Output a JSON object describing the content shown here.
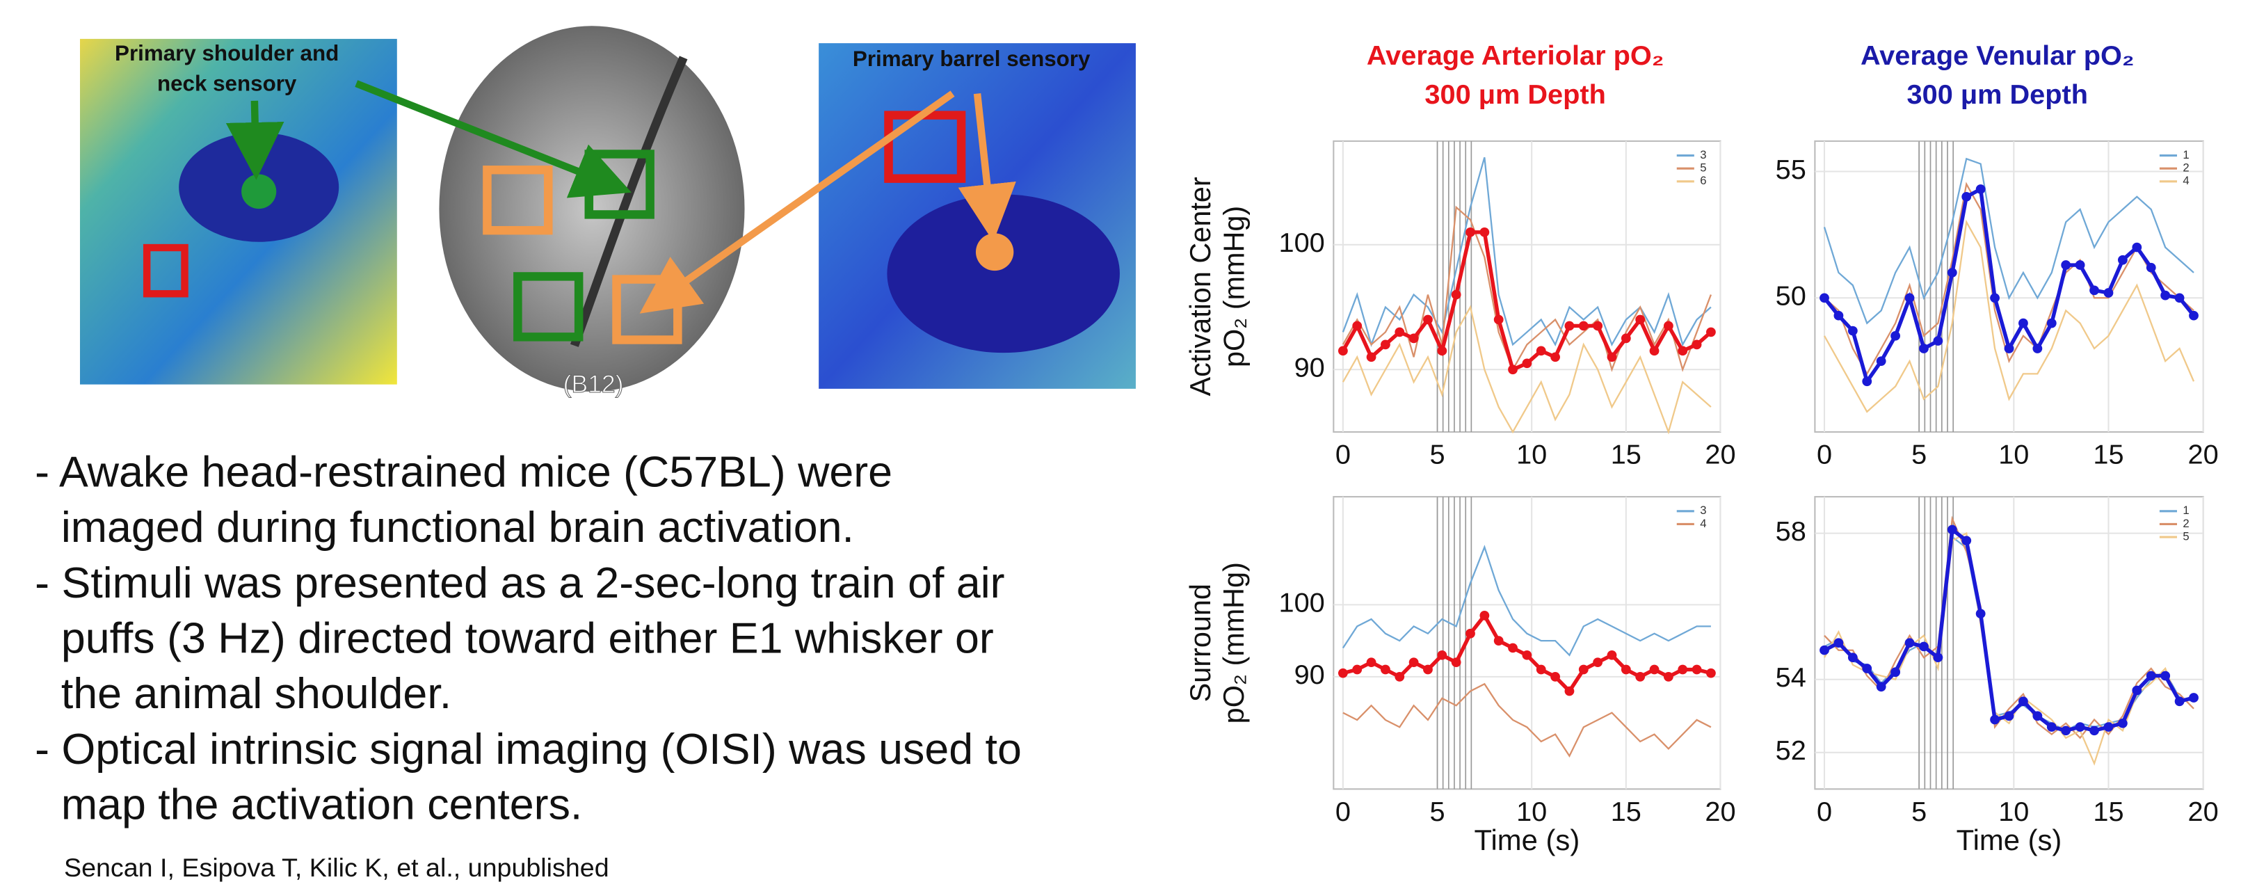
{
  "panels": {
    "left_label": [
      "Primary shoulder and",
      "neck sensory"
    ],
    "right_label": "Primary barrel sensory",
    "image_caption": "(B12)"
  },
  "bullets": [
    [
      "- Awake head-restrained mice (C57BL) were",
      "imaged during functional brain activation."
    ],
    [
      "- Stimuli was presented as a 2-sec-long train of air",
      "puffs (3 Hz) directed toward either E1 whisker or",
      "the animal shoulder."
    ],
    [
      "- Optical intrinsic signal imaging (OISI) was used to",
      "map the activation centers."
    ]
  ],
  "citation": "Sencan I, Esipova T, Kilic K, et al., unpublished",
  "chart_data": [
    {
      "type": "line",
      "title": "Average Arteriolar pO₂",
      "subtitle": "300 μm Depth",
      "title_color": "#e8141c",
      "ylabel": [
        "Activation Center",
        "pO₂ (mmHg)"
      ],
      "x": [
        0,
        0.75,
        1.5,
        2.25,
        3,
        3.75,
        4.5,
        5.25,
        6,
        6.75,
        7.5,
        8.25,
        9,
        9.75,
        10.5,
        11.25,
        12,
        12.75,
        13.5,
        14.25,
        15,
        15.75,
        16.5,
        17.25,
        18,
        18.75,
        19.5
      ],
      "series": [
        {
          "color": "#e8141c",
          "marker": "o",
          "values": [
            91.5,
            93.5,
            91,
            92,
            93,
            92.5,
            94,
            91.5,
            96,
            101,
            101,
            94,
            90,
            90.5,
            91.5,
            91,
            93.5,
            93.5,
            93.5,
            91,
            92.5,
            94,
            91.5,
            93.5,
            91.5,
            92,
            93
          ]
        },
        {
          "name": "3",
          "color": "#6fa8d6",
          "values": [
            93,
            96,
            92,
            95,
            94,
            96,
            95,
            93,
            98,
            103,
            107,
            96,
            92,
            93,
            94,
            92,
            95,
            94,
            95,
            92,
            94,
            95,
            93,
            96,
            92,
            94,
            95
          ]
        },
        {
          "name": "5",
          "color": "#d9906a",
          "values": [
            92,
            94,
            92,
            93,
            95,
            91,
            96,
            92,
            103,
            102,
            99,
            93,
            90,
            92,
            93,
            94,
            92,
            93,
            94,
            90,
            93,
            95,
            92,
            94,
            90,
            93,
            96
          ]
        },
        {
          "name": "6",
          "color": "#f0c98a",
          "values": [
            89,
            91,
            88,
            90,
            92,
            89,
            91,
            88,
            93,
            95,
            90,
            87,
            85,
            87,
            89,
            86,
            88,
            92,
            90,
            87,
            89,
            91,
            88,
            85,
            89,
            88,
            87
          ]
        }
      ],
      "xlim": [
        -0.5,
        20
      ],
      "xticks": [
        0,
        5,
        10,
        15,
        20
      ],
      "ylim": [
        85,
        108.3
      ],
      "yticks": [
        90,
        100
      ],
      "grid": true,
      "legend": "upper right",
      "vlines": [
        5,
        5.3,
        5.6,
        5.9,
        6.2,
        6.5,
        6.8
      ]
    },
    {
      "type": "line",
      "title": "Average Venular pO₂",
      "subtitle": "300 μm Depth",
      "title_color": "#1a1aa8",
      "x": [
        0,
        0.75,
        1.5,
        2.25,
        3,
        3.75,
        4.5,
        5.25,
        6,
        6.75,
        7.5,
        8.25,
        9,
        9.75,
        10.5,
        11.25,
        12,
        12.75,
        13.5,
        14.25,
        15,
        15.75,
        16.5,
        17.25,
        18,
        18.75,
        19.5
      ],
      "series": [
        {
          "color": "#1a1ad6",
          "marker": "o",
          "values": [
            50,
            49.3,
            48.7,
            46.7,
            47.5,
            48.5,
            50,
            48,
            48.3,
            51,
            54,
            54.3,
            50,
            48,
            49,
            48,
            49,
            51.3,
            51.3,
            50.3,
            50.2,
            51.5,
            52,
            51.2,
            50.1,
            50,
            49.3
          ]
        },
        {
          "name": "1",
          "color": "#6fa8d6",
          "values": [
            52.8,
            51,
            50.5,
            49,
            49.5,
            51,
            52,
            50,
            51,
            53,
            55.5,
            55.3,
            52,
            50,
            51,
            50,
            51,
            53,
            53.5,
            52,
            53,
            53.5,
            54,
            53.5,
            52,
            51.5,
            51
          ]
        },
        {
          "name": "2",
          "color": "#d9906a",
          "values": [
            50,
            49.5,
            48,
            47,
            48,
            49,
            50.5,
            48.5,
            49,
            51.5,
            54.5,
            53.5,
            49.5,
            47.5,
            48.5,
            48,
            49.5,
            51,
            51.5,
            50,
            50,
            51,
            52,
            51,
            50.5,
            50,
            49.5
          ]
        },
        {
          "name": "4",
          "color": "#f0c98a",
          "values": [
            48.5,
            47.5,
            46.5,
            45.5,
            46,
            46.5,
            47.5,
            46,
            46.5,
            49,
            53,
            52,
            48,
            46,
            47,
            47,
            48,
            49.5,
            49,
            48,
            48.5,
            49.5,
            50.5,
            49,
            47.5,
            48,
            46.7
          ]
        }
      ],
      "xlim": [
        -0.5,
        20
      ],
      "xticks": [
        0,
        5,
        10,
        15,
        20
      ],
      "ylim": [
        44.7,
        56.2
      ],
      "yticks": [
        50,
        55
      ],
      "grid": true,
      "legend": "upper right",
      "vlines": [
        5,
        5.3,
        5.6,
        5.9,
        6.2,
        6.5,
        6.8
      ]
    },
    {
      "type": "line",
      "ylabel": [
        "Surround",
        "pO₂ (mmHg)"
      ],
      "xlabel": "Time (s)",
      "x": [
        0,
        0.75,
        1.5,
        2.25,
        3,
        3.75,
        4.5,
        5.25,
        6,
        6.75,
        7.5,
        8.25,
        9,
        9.75,
        10.5,
        11.25,
        12,
        12.75,
        13.5,
        14.25,
        15,
        15.75,
        16.5,
        17.25,
        18,
        18.75,
        19.5
      ],
      "series": [
        {
          "color": "#e8141c",
          "marker": "o",
          "values": [
            90.5,
            91,
            92,
            91,
            90,
            92,
            91,
            93,
            92,
            96,
            98.5,
            95,
            94,
            93,
            91,
            90,
            88,
            91,
            92,
            93,
            91,
            90,
            91,
            90,
            91,
            91,
            90.5
          ]
        },
        {
          "name": "3",
          "color": "#6fa8d6",
          "values": [
            94,
            97,
            98,
            96,
            95,
            97,
            96,
            98,
            97,
            103,
            108,
            102,
            98,
            96,
            95,
            95,
            93,
            97,
            98,
            97,
            96,
            95,
            96,
            95,
            96,
            97,
            97
          ]
        },
        {
          "name": "4",
          "color": "#d9906a",
          "values": [
            85,
            84,
            86,
            84,
            83,
            86,
            84,
            87,
            86,
            88,
            89,
            86,
            84,
            83,
            81,
            82,
            79,
            83,
            84,
            85,
            83,
            81,
            82,
            80,
            82,
            84,
            83
          ]
        }
      ],
      "xlim": [
        -0.5,
        20
      ],
      "xticks": [
        0,
        5,
        10,
        15,
        20
      ],
      "ylim": [
        74.4,
        115
      ],
      "yticks": [
        90,
        100
      ],
      "grid": true,
      "legend": "upper right",
      "vlines": [
        5,
        5.3,
        5.6,
        5.9,
        6.2,
        6.5,
        6.8
      ]
    },
    {
      "type": "line",
      "xlabel": "Time (s)",
      "x": [
        0,
        0.75,
        1.5,
        2.25,
        3,
        3.75,
        4.5,
        5.25,
        6,
        6.75,
        7.5,
        8.25,
        9,
        9.75,
        10.5,
        11.25,
        12,
        12.75,
        13.5,
        14.25,
        15,
        15.75,
        16.5,
        17.25,
        18,
        18.75,
        19.5
      ],
      "series": [
        {
          "color": "#1a1ad6",
          "marker": "o",
          "values": [
            54.8,
            55,
            54.6,
            54.3,
            53.8,
            54.2,
            55,
            54.9,
            54.6,
            58.1,
            57.8,
            55.8,
            52.9,
            53,
            53.4,
            53,
            52.7,
            52.6,
            52.7,
            52.6,
            52.7,
            52.8,
            53.7,
            54.1,
            54.1,
            53.4,
            53.5
          ]
        },
        {
          "name": "1",
          "color": "#6fa8d6",
          "values": [
            54.9,
            55.1,
            54.5,
            54.4,
            53.9,
            54.3,
            54.8,
            55,
            54.5,
            57.9,
            57.6,
            55.6,
            53,
            53.1,
            53.3,
            53,
            52.8,
            52.6,
            52.8,
            52.7,
            52.8,
            52.9,
            53.5,
            54,
            54.2,
            53.5,
            53.4
          ]
        },
        {
          "name": "2",
          "color": "#d9906a",
          "values": [
            55.2,
            54.8,
            54.8,
            54.1,
            53.7,
            54.5,
            55.2,
            54.6,
            54.9,
            58.4,
            57.5,
            56,
            52.7,
            53.2,
            53.6,
            52.8,
            52.5,
            52.8,
            52.4,
            52.9,
            52.5,
            53,
            53.9,
            54.3,
            53.8,
            53.6,
            53.2
          ]
        },
        {
          "name": "5",
          "color": "#f0c98a",
          "values": [
            54.6,
            55.3,
            54.4,
            54.2,
            54.1,
            54,
            54.9,
            55.2,
            54.3,
            57.8,
            58,
            55.5,
            53.1,
            52.8,
            53.5,
            53.2,
            52.9,
            52.4,
            52.6,
            51.7,
            52.9,
            52.6,
            53.6,
            53.9,
            54.3,
            53.3,
            53.6
          ]
        }
      ],
      "xlim": [
        -0.5,
        20
      ],
      "xticks": [
        0,
        5,
        10,
        15,
        20
      ],
      "ylim": [
        51,
        59
      ],
      "yticks": [
        52,
        54,
        58
      ],
      "grid": true,
      "legend": "upper right",
      "vlines": [
        5,
        5.3,
        5.6,
        5.9,
        6.2,
        6.5,
        6.8
      ]
    }
  ]
}
